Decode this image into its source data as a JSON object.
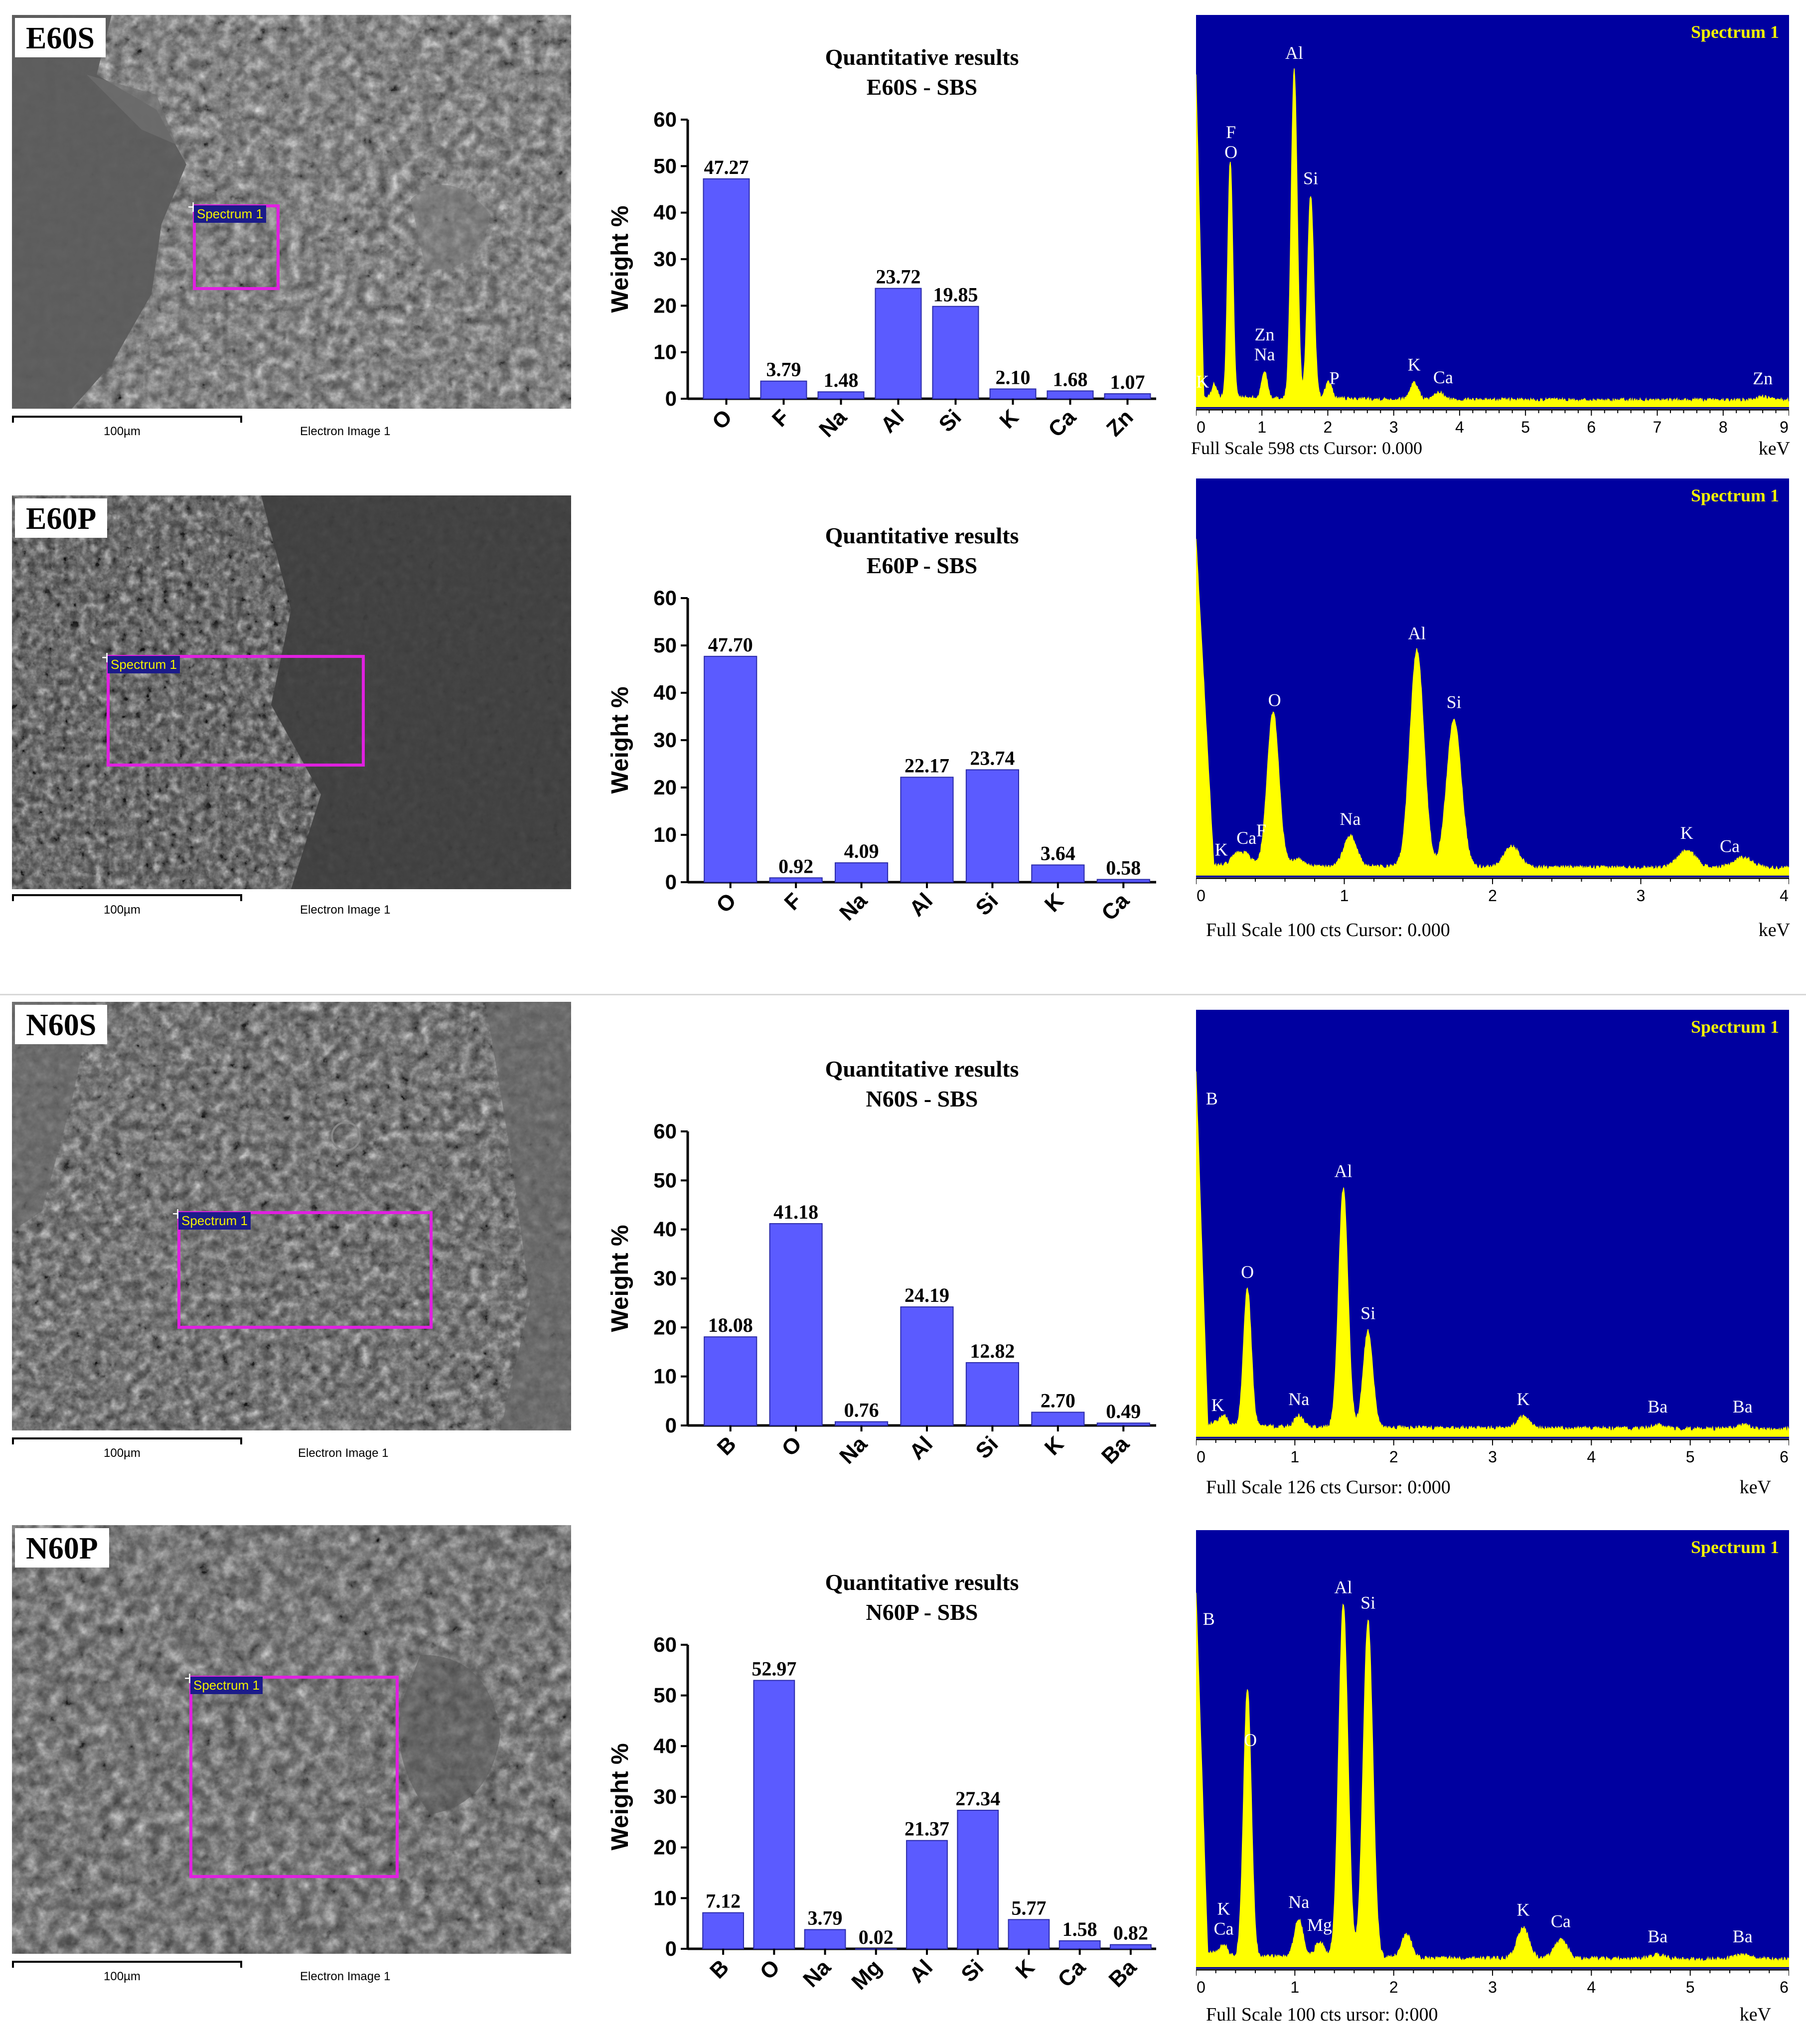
{
  "panels": [
    {
      "id": "e60s",
      "sample_label": "E60S",
      "sem": {
        "spectrum_tag": "Spectrum 1",
        "scale_label": "100µm",
        "image_label": "Electron Image 1"
      },
      "edx": {
        "title": "Spectrum 1",
        "footer": "Full Scale 598 cts Cursor: 0.000",
        "unit": "keV",
        "ticks": [
          "0",
          "1",
          "2",
          "3",
          "4",
          "5",
          "6",
          "7",
          "8",
          "9"
        ]
      }
    },
    {
      "id": "e60p",
      "sample_label": "E60P",
      "sem": {
        "spectrum_tag": "Spectrum 1",
        "scale_label": "100µm",
        "image_label": "Electron Image 1"
      },
      "edx": {
        "title": "Spectrum 1",
        "footer": "Full Scale 100 cts Cursor: 0.000",
        "unit": "keV",
        "ticks": [
          "0",
          "1",
          "2",
          "3",
          "4"
        ]
      }
    },
    {
      "id": "n60s",
      "sample_label": "N60S",
      "sem": {
        "spectrum_tag": "Spectrum 1",
        "scale_label": "100µm",
        "image_label": "Electron Image 1"
      },
      "edx": {
        "title": "Spectrum 1",
        "footer": "Full Scale 126 cts Cursor: 0:000",
        "unit": "keV",
        "ticks": [
          "0",
          "1",
          "2",
          "3",
          "4",
          "5",
          "6"
        ]
      }
    },
    {
      "id": "n60p",
      "sample_label": "N60P",
      "sem": {
        "spectrum_tag": "Spectrum 1",
        "scale_label": "100µm",
        "image_label": "Electron Image 1"
      },
      "edx": {
        "title": "Spectrum 1",
        "footer": "Full Scale 100 cts ursor: 0:000",
        "unit": "keV",
        "ticks": [
          "0",
          "1",
          "2",
          "3",
          "4",
          "5",
          "6"
        ]
      }
    }
  ],
  "edx_peaks": [
    {
      "xmax": 9,
      "peaks": [
        {
          "e": 0.28,
          "h": 0.04,
          "label": "K",
          "lk": 0.1
        },
        {
          "e": 0.52,
          "h": 0.7,
          "label": "F\nO",
          "lk": 0.53
        },
        {
          "e": 1.04,
          "h": 0.08,
          "label": "Zn\nNa",
          "lk": 1.04
        },
        {
          "e": 1.49,
          "h": 0.97,
          "label": "Al",
          "lk": 1.49
        },
        {
          "e": 1.74,
          "h": 0.6,
          "label": "Si",
          "lk": 1.74
        },
        {
          "e": 2.01,
          "h": 0.05,
          "label": "P",
          "lk": 2.1
        },
        {
          "e": 3.31,
          "h": 0.05,
          "label": "K",
          "lk": 3.31
        },
        {
          "e": 3.69,
          "h": 0.02,
          "label": "Ca",
          "lk": 3.75
        },
        {
          "e": 8.6,
          "h": 0.01,
          "label": "Zn",
          "lk": 8.6
        }
      ]
    },
    {
      "xmax": 4,
      "peaks": [
        {
          "e": 0.27,
          "h": 0.03,
          "label": "K",
          "lk": 0.17
        },
        {
          "e": 0.34,
          "h": 0.03,
          "label": "Ca",
          "lk": 0.34
        },
        {
          "e": 0.52,
          "h": 0.45,
          "label": "O",
          "lk": 0.53
        },
        {
          "e": 0.68,
          "h": 0.02,
          "label": "F",
          "lk": 0.44
        },
        {
          "e": 1.04,
          "h": 0.09,
          "label": "Na",
          "lk": 1.04
        },
        {
          "e": 1.49,
          "h": 0.63,
          "label": "Al",
          "lk": 1.49
        },
        {
          "e": 1.74,
          "h": 0.43,
          "label": "Si",
          "lk": 1.74
        },
        {
          "e": 2.13,
          "h": 0.06,
          "label": "",
          "lk": 2.13
        },
        {
          "e": 3.31,
          "h": 0.05,
          "label": "K",
          "lk": 3.31
        },
        {
          "e": 3.69,
          "h": 0.03,
          "label": "Ca",
          "lk": 3.6
        }
      ]
    },
    {
      "xmax": 6,
      "peaks": [
        {
          "e": 0.18,
          "h": 0.01,
          "label": "B",
          "lk": 0.16
        },
        {
          "e": 0.28,
          "h": 0.03,
          "label": "K",
          "lk": 0.22
        },
        {
          "e": 0.52,
          "h": 0.37,
          "label": "O",
          "lk": 0.52
        },
        {
          "e": 1.04,
          "h": 0.03,
          "label": "Na",
          "lk": 1.04
        },
        {
          "e": 1.49,
          "h": 0.64,
          "label": "Al",
          "lk": 1.49
        },
        {
          "e": 1.74,
          "h": 0.26,
          "label": "Si",
          "lk": 1.74
        },
        {
          "e": 3.31,
          "h": 0.03,
          "label": "K",
          "lk": 3.31
        },
        {
          "e": 4.67,
          "h": 0.01,
          "label": "Ba",
          "lk": 4.67
        },
        {
          "e": 5.53,
          "h": 0.01,
          "label": "Ba",
          "lk": 5.53
        }
      ]
    },
    {
      "xmax": 6,
      "peaks": [
        {
          "e": 0.18,
          "h": 0.01,
          "label": "B",
          "lk": 0.13
        },
        {
          "e": 0.28,
          "h": 0.03,
          "label": "K\nCa",
          "lk": 0.28
        },
        {
          "e": 0.52,
          "h": 0.7,
          "label": "O",
          "lk": 0.55
        },
        {
          "e": 1.04,
          "h": 0.1,
          "label": "Na",
          "lk": 1.04
        },
        {
          "e": 1.25,
          "h": 0.04,
          "label": "Mg",
          "lk": 1.25
        },
        {
          "e": 1.49,
          "h": 0.92,
          "label": "Al",
          "lk": 1.49
        },
        {
          "e": 1.74,
          "h": 0.88,
          "label": "Si",
          "lk": 1.74
        },
        {
          "e": 2.13,
          "h": 0.06,
          "label": "",
          "lk": 2.13
        },
        {
          "e": 3.31,
          "h": 0.08,
          "label": "K",
          "lk": 3.31
        },
        {
          "e": 3.69,
          "h": 0.05,
          "label": "Ca",
          "lk": 3.69
        },
        {
          "e": 4.67,
          "h": 0.01,
          "label": "Ba",
          "lk": 4.67
        },
        {
          "e": 5.53,
          "h": 0.01,
          "label": "Ba",
          "lk": 5.53
        }
      ]
    }
  ],
  "chart_data": [
    {
      "type": "bar",
      "title": "Quantitative results",
      "subtitle": "E60S - SBS",
      "ylabel": "Weight %",
      "xlabel": "",
      "ylim": [
        0,
        60
      ],
      "yticks": [
        0,
        10,
        20,
        30,
        40,
        50,
        60
      ],
      "categories": [
        "O",
        "F",
        "Na",
        "Al",
        "Si",
        "K",
        "Ca",
        "Zn"
      ],
      "values": [
        47.27,
        3.79,
        1.48,
        23.72,
        19.85,
        2.1,
        1.68,
        1.07
      ],
      "labels": [
        "47.27",
        "3.79",
        "1.48",
        "23.72",
        "19.85",
        "2.10",
        "1.68",
        "1.07"
      ]
    },
    {
      "type": "bar",
      "title": "Quantitative results",
      "subtitle": "E60P - SBS",
      "ylabel": "Weight %",
      "xlabel": "",
      "ylim": [
        0,
        60
      ],
      "yticks": [
        0,
        10,
        20,
        30,
        40,
        50,
        60
      ],
      "categories": [
        "O",
        "F",
        "Na",
        "Al",
        "Si",
        "K",
        "Ca"
      ],
      "values": [
        47.7,
        0.92,
        4.09,
        22.17,
        23.74,
        3.64,
        0.58
      ],
      "labels": [
        "47.70",
        "0.92",
        "4.09",
        "22.17",
        "23.74",
        "3.64",
        "0.58"
      ]
    },
    {
      "type": "bar",
      "title": "Quantitative results",
      "subtitle": "N60S - SBS",
      "ylabel": "Weight %",
      "xlabel": "",
      "ylim": [
        0,
        60
      ],
      "yticks": [
        0,
        10,
        20,
        30,
        40,
        50,
        60
      ],
      "categories": [
        "B",
        "O",
        "Na",
        "Al",
        "Si",
        "K",
        "Ba"
      ],
      "values": [
        18.08,
        41.18,
        0.76,
        24.19,
        12.82,
        2.7,
        0.49
      ],
      "labels": [
        "18.08",
        "41.18",
        "0.76",
        "24.19",
        "12.82",
        "2.70",
        "0.49"
      ]
    },
    {
      "type": "bar",
      "title": "Quantitative results",
      "subtitle": "N60P - SBS",
      "ylabel": "Weight %",
      "xlabel": "",
      "ylim": [
        0,
        60
      ],
      "yticks": [
        0,
        10,
        20,
        30,
        40,
        50,
        60
      ],
      "categories": [
        "B",
        "O",
        "Na",
        "Mg",
        "Al",
        "Si",
        "K",
        "Ca",
        "Ba"
      ],
      "values": [
        7.12,
        52.97,
        3.79,
        0.02,
        21.37,
        27.34,
        5.77,
        1.58,
        0.82
      ],
      "labels": [
        "7.12",
        "52.97",
        "3.79",
        "0.02",
        "21.37",
        "27.34",
        "5.77",
        "1.58",
        "0.82"
      ]
    }
  ],
  "colors": {
    "bar": "#5b5bff",
    "edx_bg": "#0000a0",
    "edx_fill": "#ffff00",
    "spec_box": "#e020e0",
    "title_yellow": "#f2f200"
  }
}
